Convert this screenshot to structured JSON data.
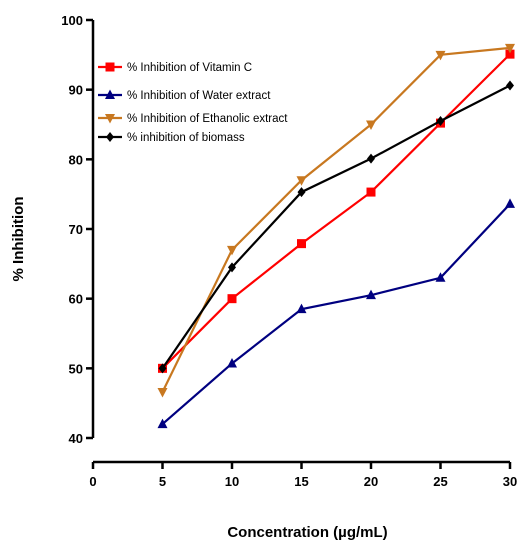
{
  "chart_data": {
    "type": "line",
    "title": "",
    "xlabel": "Concentration (µg/mL)",
    "ylabel": "% Inhibition",
    "xlim": [
      0,
      30
    ],
    "ylim": [
      40,
      100
    ],
    "x_ticks": [
      0,
      5,
      10,
      15,
      20,
      25,
      30
    ],
    "y_ticks": [
      40,
      50,
      60,
      70,
      80,
      90,
      100
    ],
    "grid": false,
    "legend_position": "top-left",
    "x": [
      5,
      10,
      15,
      20,
      25,
      30
    ],
    "series": [
      {
        "name": "% Inhibition of Vitamin C",
        "color": "#ff0000",
        "marker": "square",
        "values": [
          50.0,
          60.0,
          67.9,
          75.3,
          85.2,
          95.1
        ]
      },
      {
        "name": "% Inhibition of Water extract",
        "color": "#000080",
        "marker": "triangle-up",
        "values": [
          42.0,
          50.7,
          58.5,
          60.5,
          63.0,
          73.6
        ]
      },
      {
        "name": "% Inhibition of Ethanolic extract",
        "color": "#c87820",
        "marker": "triangle-down",
        "values": [
          46.6,
          67.0,
          77.0,
          85.0,
          95.0,
          96.0
        ]
      },
      {
        "name": "% inhibition of biomass",
        "color": "#000000",
        "marker": "diamond",
        "values": [
          50.0,
          64.5,
          75.3,
          80.1,
          85.5,
          90.6
        ]
      }
    ]
  }
}
